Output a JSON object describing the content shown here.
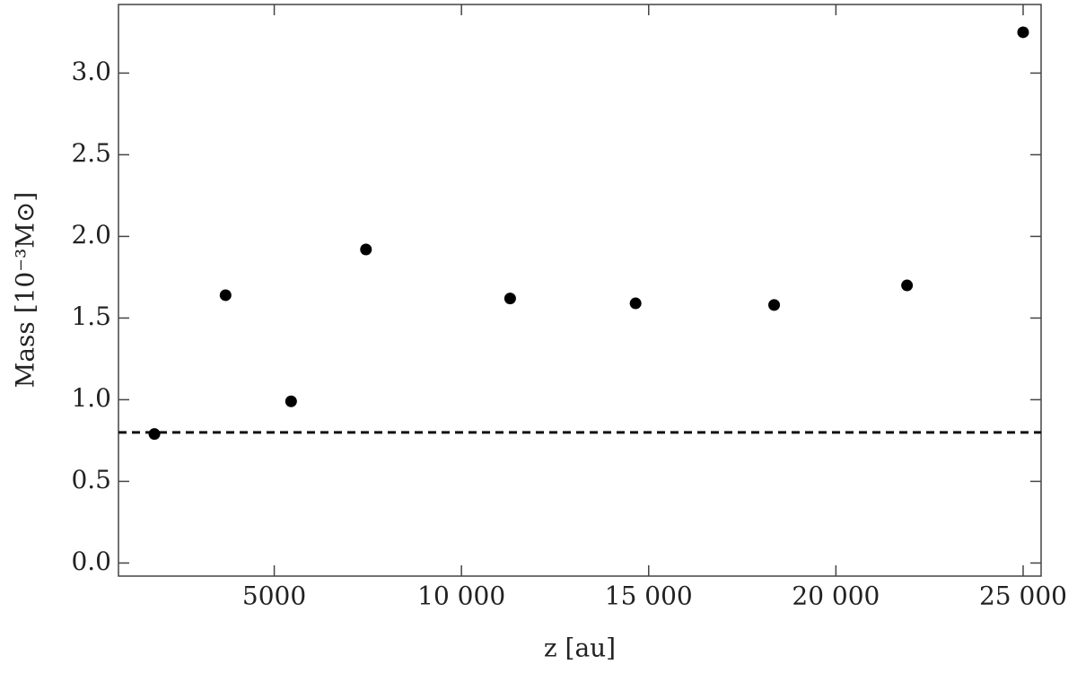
{
  "chart_data": {
    "type": "scatter",
    "xlabel": "z [au]",
    "ylabel": "Mass [10⁻³M⊙]",
    "x": [
      1800,
      3700,
      5450,
      7450,
      11300,
      14650,
      18350,
      21900,
      25000
    ],
    "values": [
      0.79,
      1.64,
      0.99,
      1.92,
      1.62,
      1.59,
      1.58,
      1.7,
      3.25
    ],
    "color": "#000000",
    "hline": 0.8,
    "xlim": [
      840,
      25480
    ],
    "ylim": [
      -0.08,
      3.42
    ],
    "xticks": [
      5000,
      {
        "value": 10000,
        "label": "10 000"
      },
      {
        "value": 15000,
        "label": "15 000"
      },
      {
        "value": 20000,
        "label": "20 000"
      },
      {
        "value": 25000,
        "label": "25 000"
      }
    ],
    "yticks": [
      {
        "value": 0,
        "label": "0.0"
      },
      0.5,
      {
        "value": 1,
        "label": "1.0"
      },
      1.5,
      {
        "value": 2,
        "label": "2.0"
      },
      2.5,
      {
        "value": 3,
        "label": "3.0"
      }
    ]
  }
}
